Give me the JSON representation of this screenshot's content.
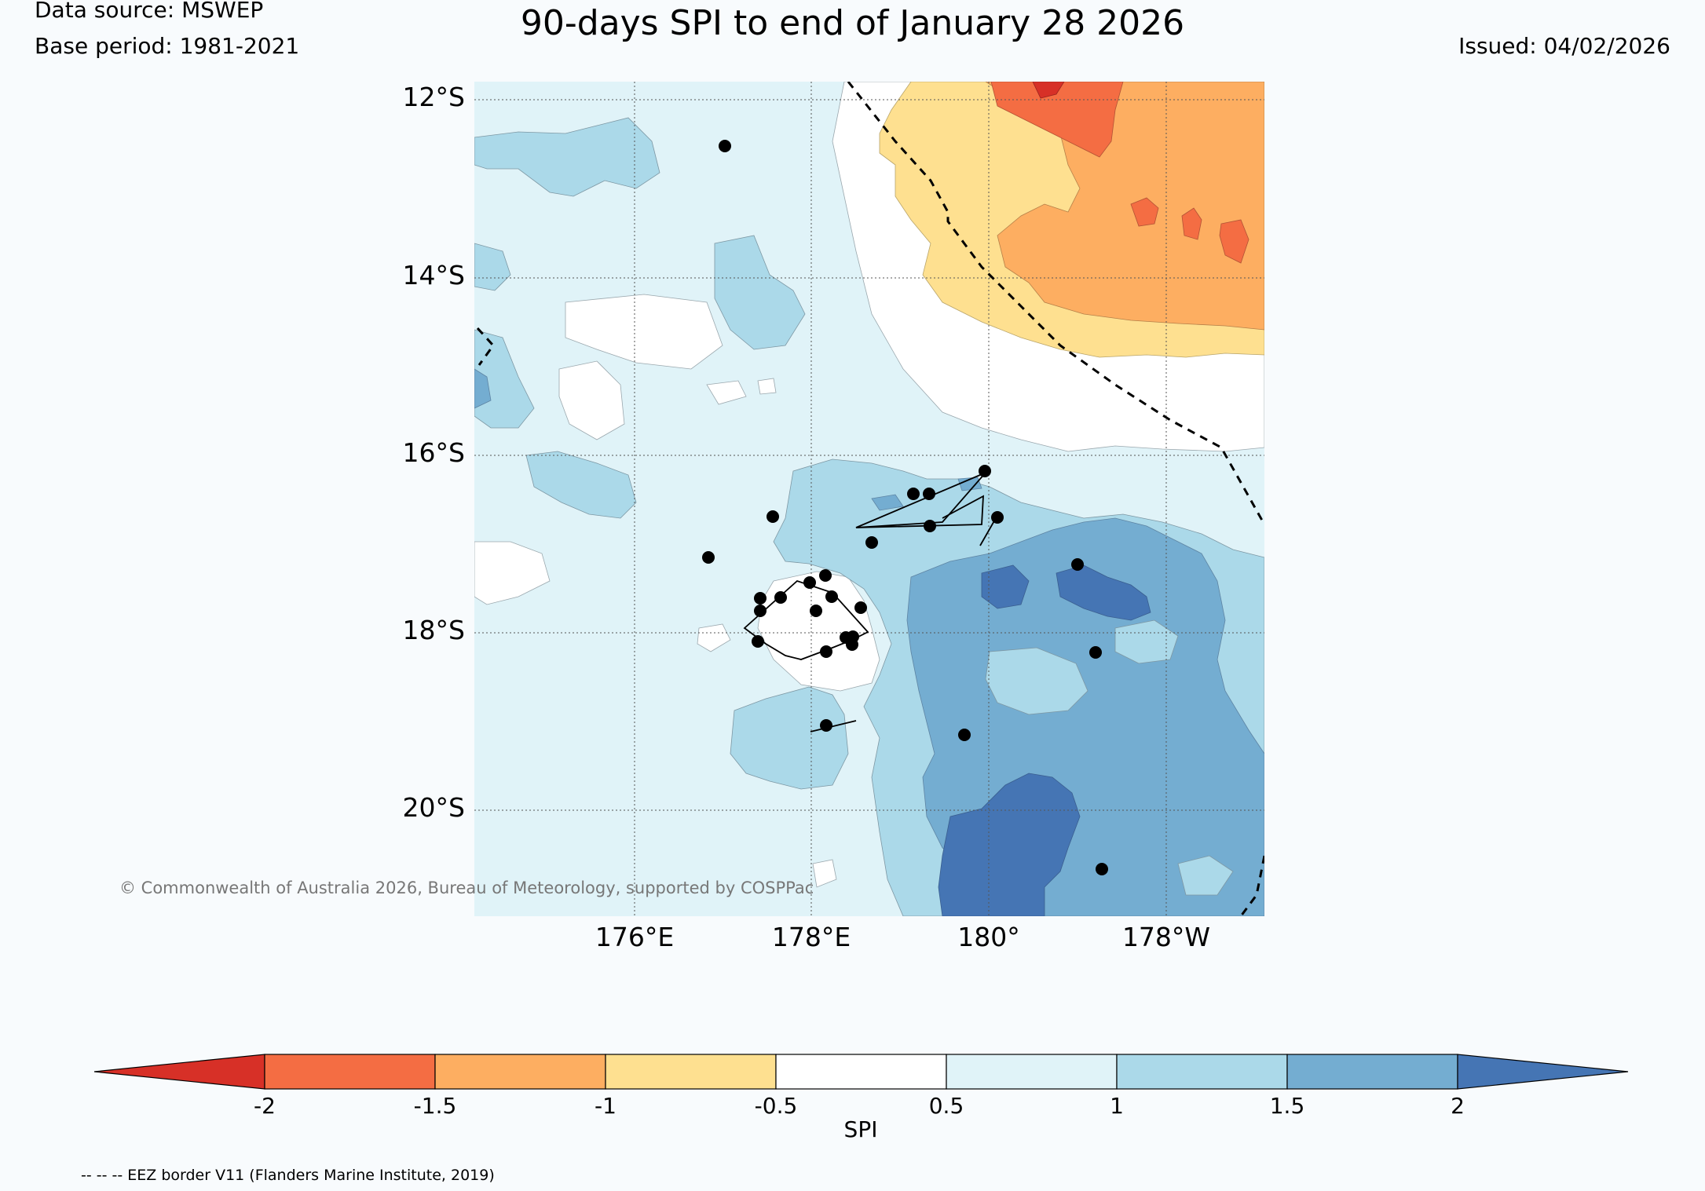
{
  "header": {
    "title": "90-days SPI to end of January 28 2026",
    "data_source": "Data source: MSWEP",
    "base_period": "Base period: 1981-2021",
    "issued": "Issued: 04/02/2026"
  },
  "map": {
    "lat_labels": [
      "12°S",
      "14°S",
      "16°S",
      "18°S",
      "20°S"
    ],
    "lon_labels": [
      "176°E",
      "178°E",
      "180°",
      "178°W"
    ],
    "copyright": "© Commonwealth of Australia 2026, Bureau of Meteorology, supported by COSPPac",
    "eez_note": "-- -- -- EEZ border V11 (Flanders Marine Institute, 2019)"
  },
  "colorbar": {
    "label": "SPI",
    "ticks": [
      "-2",
      "-1.5",
      "-1",
      "-0.5",
      "0.5",
      "1",
      "1.5",
      "2"
    ],
    "colors": [
      "#d73027",
      "#f46d43",
      "#fdae61",
      "#fee090",
      "#ffffff",
      "#e0f3f8",
      "#abd9e9",
      "#74add1",
      "#4575b4"
    ]
  },
  "colors": {
    "background": "#f8fbfd",
    "copyright_text": "#777777"
  }
}
